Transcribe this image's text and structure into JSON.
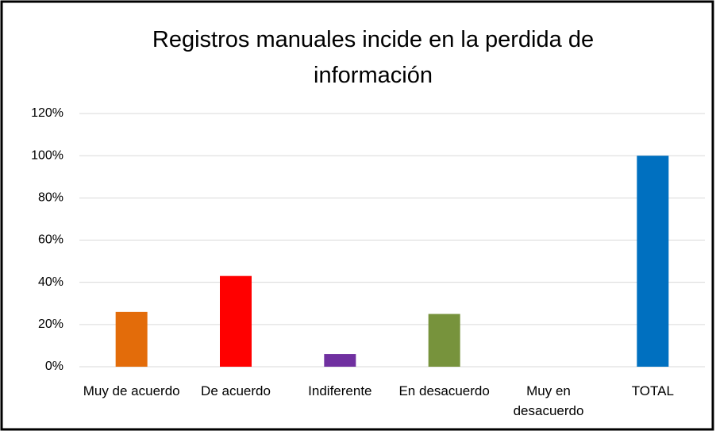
{
  "chart_data": {
    "type": "bar",
    "title": "Registros manuales incide en la perdida de información",
    "categories": [
      "Muy de acuerdo",
      "De acuerdo",
      "Indiferente",
      "En desacuerdo",
      "Muy en desacuerdo",
      "TOTAL"
    ],
    "values": [
      26,
      43,
      6,
      25,
      0,
      100
    ],
    "colors": [
      "#e36c0a",
      "#ff0000",
      "#7030a0",
      "#77933c",
      null,
      "#0070c0"
    ],
    "ylim": [
      0,
      120
    ],
    "yticks": [
      {
        "value": 0,
        "label": "0%"
      },
      {
        "value": 20,
        "label": "20%"
      },
      {
        "value": 40,
        "label": "40%"
      },
      {
        "value": 60,
        "label": "60%"
      },
      {
        "value": 80,
        "label": "80%"
      },
      {
        "value": 100,
        "label": "100%"
      },
      {
        "value": 120,
        "label": "120%"
      }
    ],
    "grid": true
  }
}
